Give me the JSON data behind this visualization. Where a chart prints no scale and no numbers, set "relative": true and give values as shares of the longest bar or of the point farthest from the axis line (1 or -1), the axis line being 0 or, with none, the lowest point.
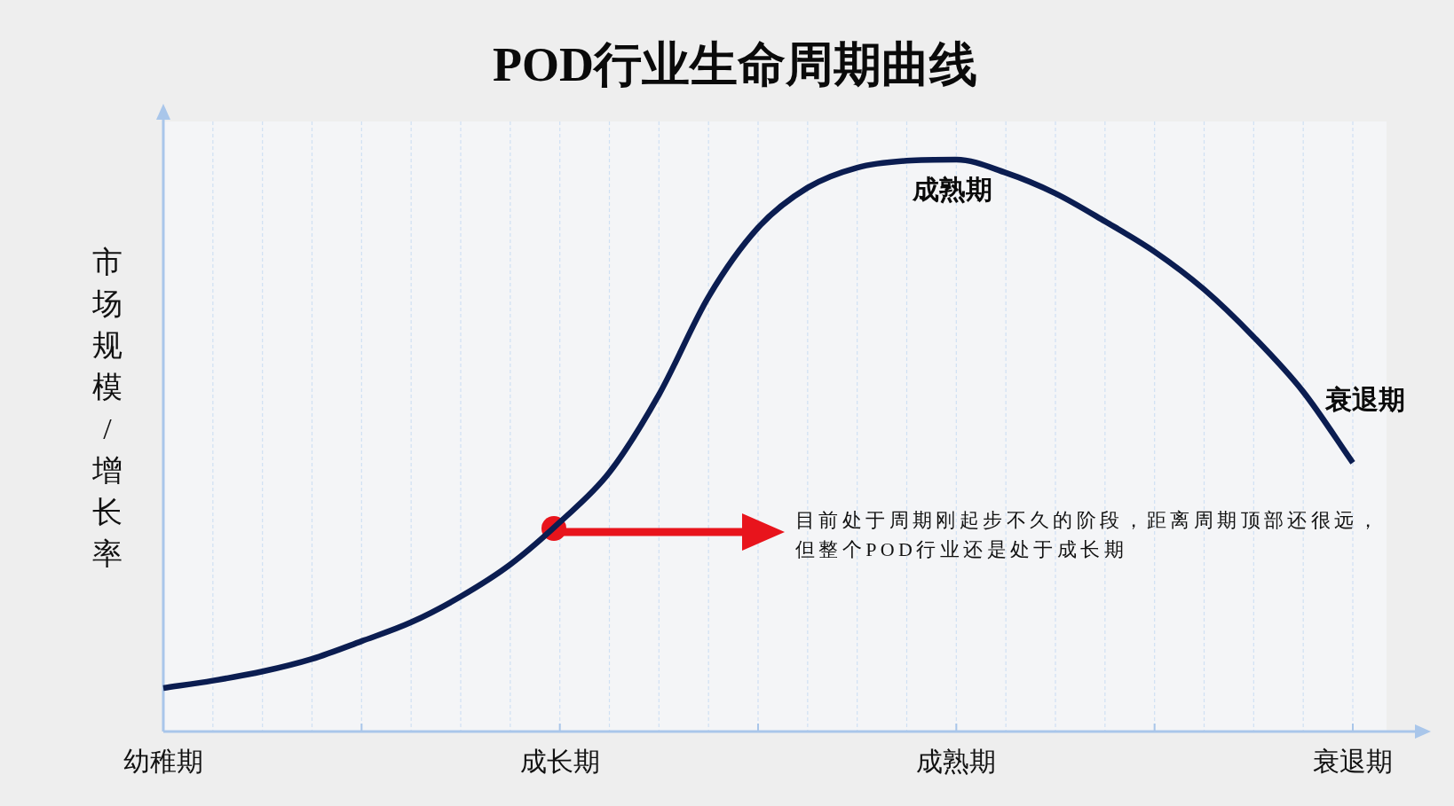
{
  "chart_data": {
    "type": "line",
    "title": "POD行业生命周期曲线",
    "ylabel": "市场规模/增长率",
    "categories": [
      "幼稚期",
      null,
      null,
      null,
      null,
      null,
      null,
      null,
      "成长期",
      null,
      null,
      null,
      null,
      null,
      null,
      null,
      "成熟期",
      null,
      null,
      null,
      null,
      null,
      null,
      null,
      "衰退期"
    ],
    "relative": true,
    "grid": "x",
    "series": [
      {
        "color": "#0b1d51",
        "values": [
          0.076,
          0.089,
          0.105,
          0.127,
          0.158,
          0.191,
          0.236,
          0.292,
          0.366,
          0.453,
          0.589,
          0.76,
          0.881,
          0.951,
          0.986,
          0.998,
          1.0,
          0.977,
          0.941,
          0.892,
          0.839,
          0.773,
          0.69,
          0.594,
          0.47
        ]
      }
    ],
    "annotations": [
      {
        "text": "成熟期",
        "x": "成熟期",
        "y": 1.0
      },
      "衰退期",
      "目前处于周期刚起步不久的阶段，距离周期顶部还很远，但整个POD行业还是处于成长期"
    ]
  }
}
